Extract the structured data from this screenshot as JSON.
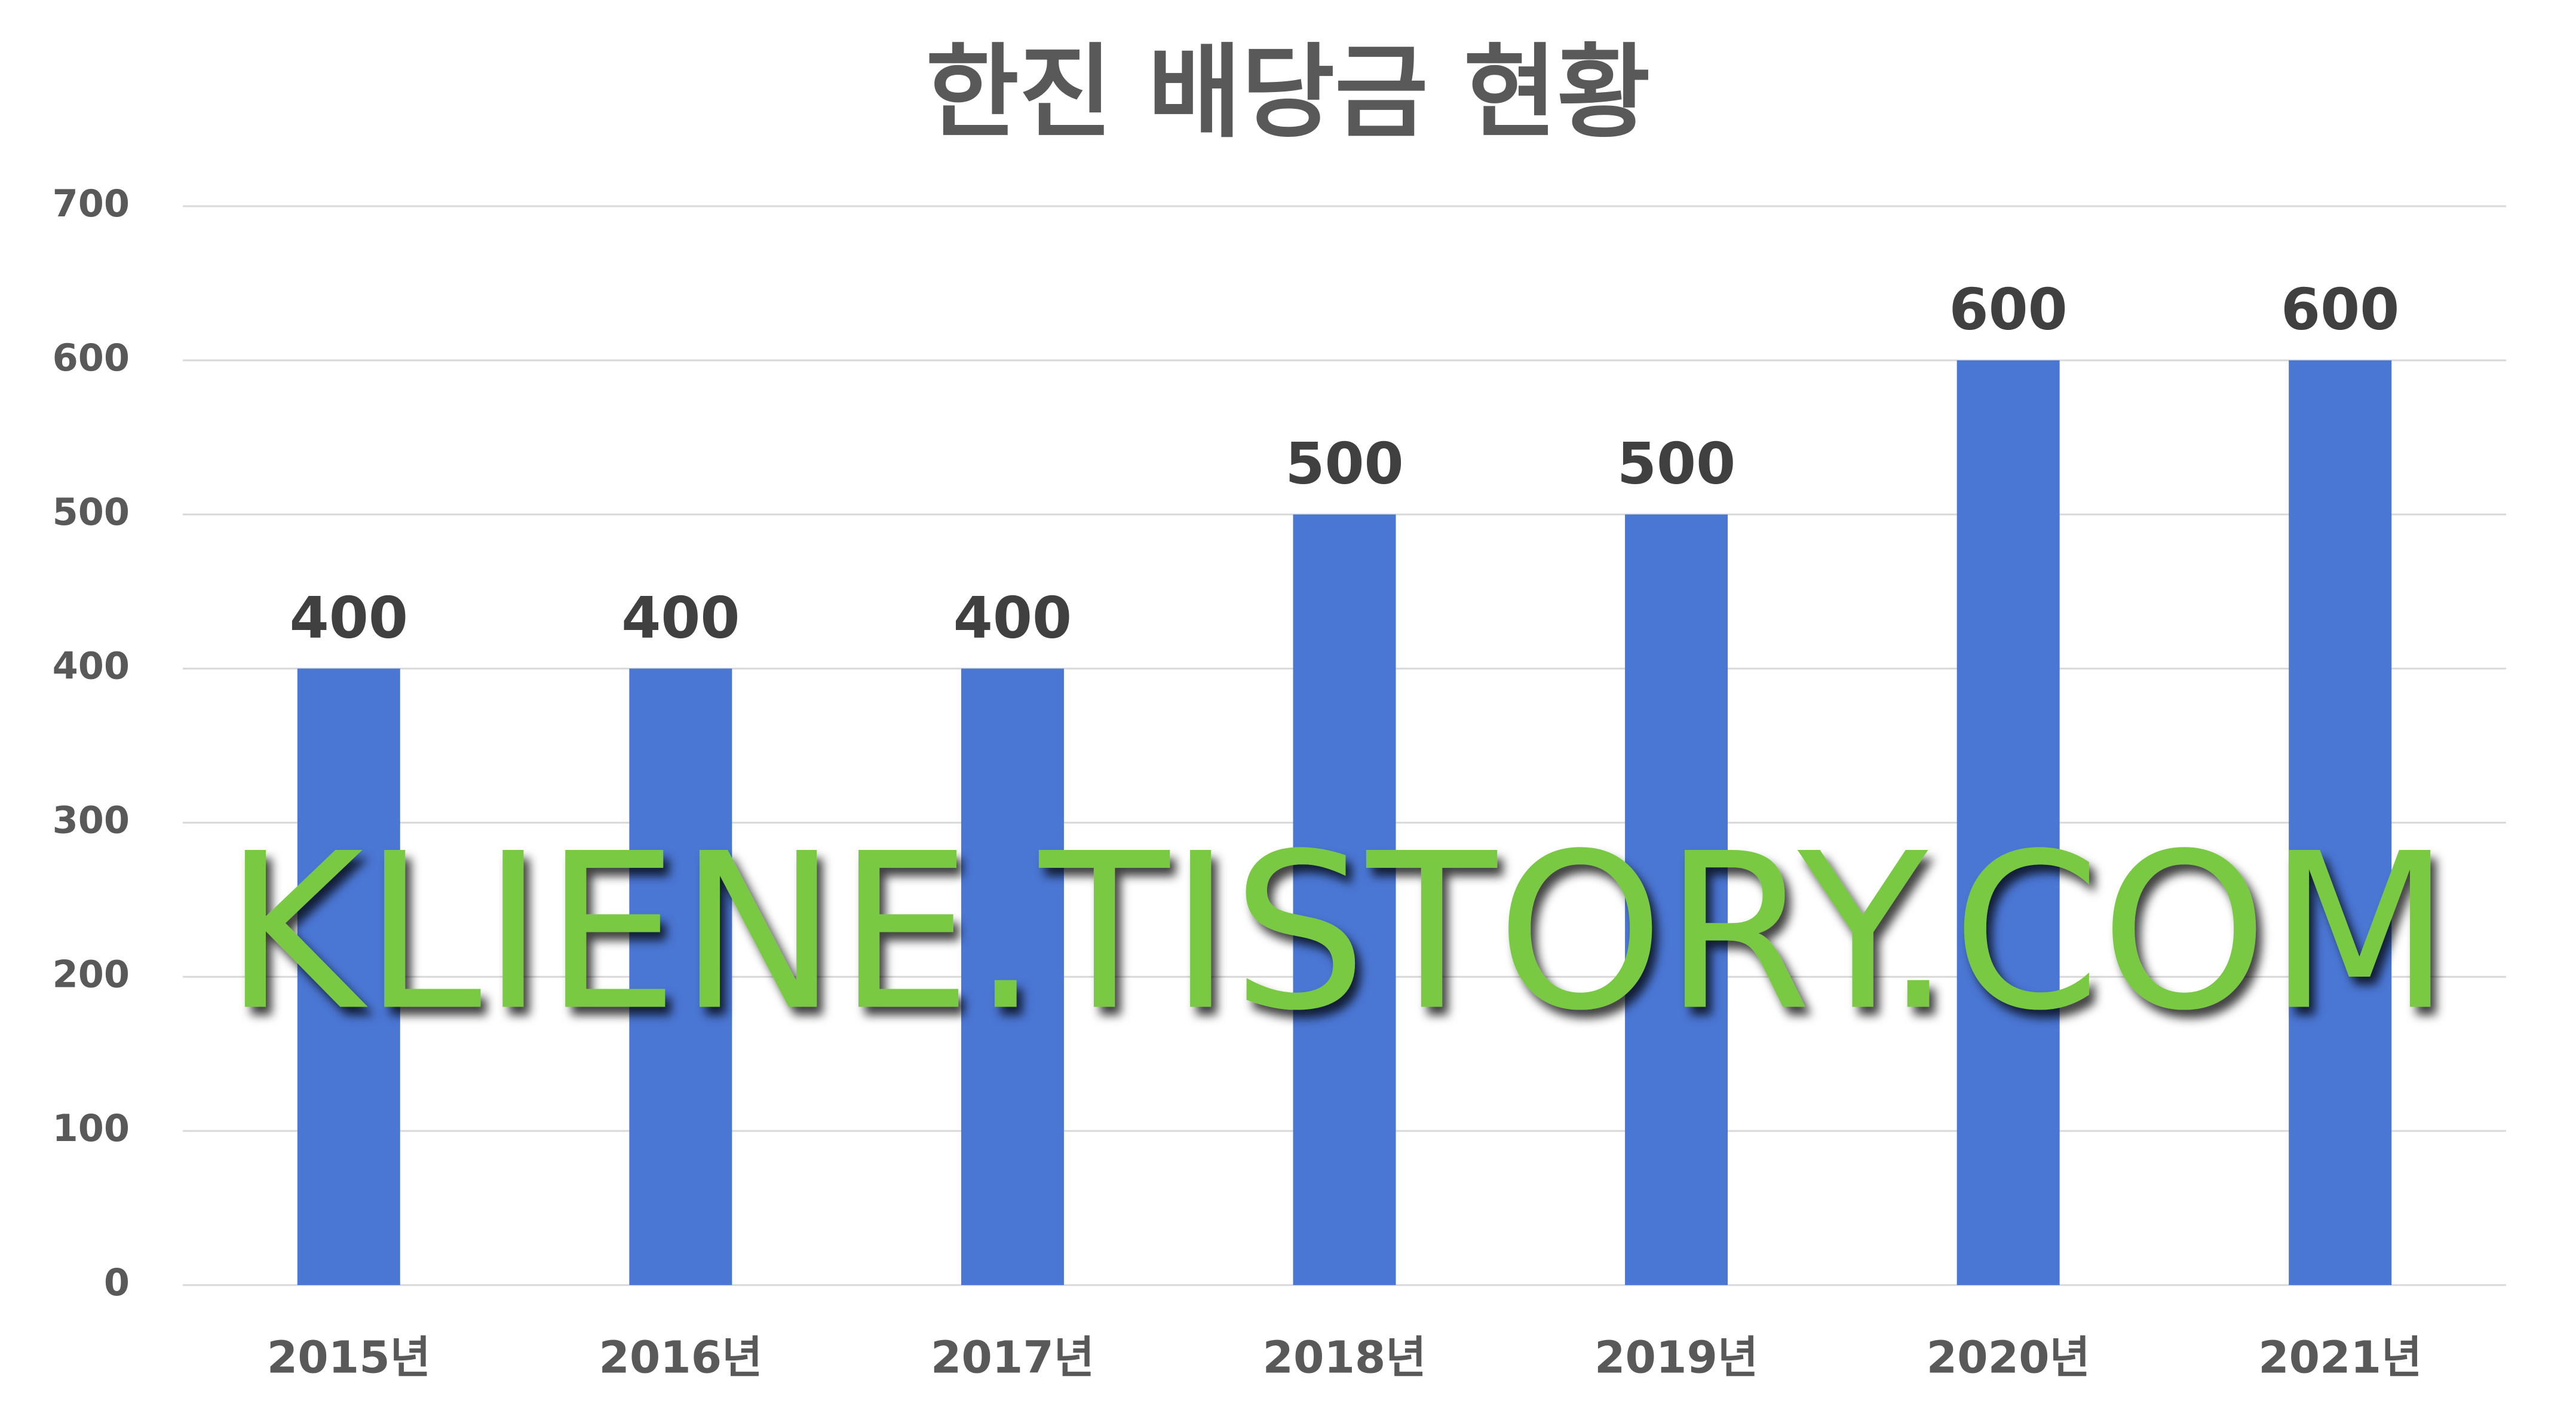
{
  "chart_data": {
    "type": "bar",
    "title": "한진 배당금 현황",
    "categories": [
      "2015년",
      "2016년",
      "2017년",
      "2018년",
      "2019년",
      "2020년",
      "2021년"
    ],
    "values": [
      400,
      400,
      400,
      500,
      500,
      600,
      600
    ],
    "color": "#4a76d4",
    "ylim": [
      0,
      700
    ],
    "yticks": [
      0,
      100,
      200,
      300,
      400,
      500,
      600,
      700
    ],
    "grid": true,
    "watermark": "KLIENE.TISTORY.COM"
  }
}
